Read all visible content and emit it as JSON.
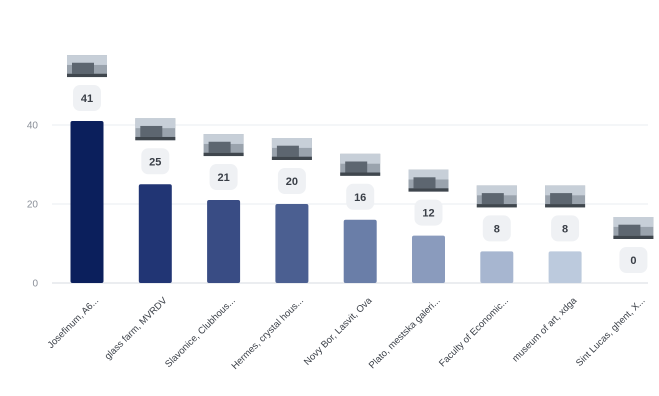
{
  "chart_data": {
    "type": "bar",
    "categories": [
      "Josefinum, A6...",
      "glass farm, MVRDV",
      "Slavonice, Clubhous...",
      "Hermes, crystal hous...",
      "Novy Bor, Lasvit, Ova",
      "Plato, mestska galeri...",
      "Faculty of Economic...",
      "museum of art, xdga",
      "Sint Lucas, ghent, X..."
    ],
    "values": [
      41,
      25,
      21,
      20,
      16,
      12,
      8,
      8,
      0
    ],
    "value_labels": [
      "41",
      "25",
      "21",
      "20",
      "16",
      "12",
      "8",
      "8",
      "0"
    ],
    "bar_colors": [
      "#0b1f5c",
      "#213574",
      "#394c84",
      "#4b5f91",
      "#6a7ea8",
      "#8a9bbd",
      "#a7b6d0",
      "#bccadd",
      "#c9d4e4"
    ],
    "thumbnails": [
      "photo-thumbnail",
      "photo-thumbnail",
      "photo-thumbnail",
      "photo-thumbnail",
      "photo-thumbnail",
      "photo-thumbnail",
      "photo-thumbnail",
      "photo-thumbnail",
      "photo-thumbnail"
    ],
    "yticks": [
      "0",
      "20",
      "40"
    ],
    "ylim": [
      0,
      50
    ],
    "grid": true,
    "title": "",
    "xlabel": "",
    "ylabel": ""
  }
}
